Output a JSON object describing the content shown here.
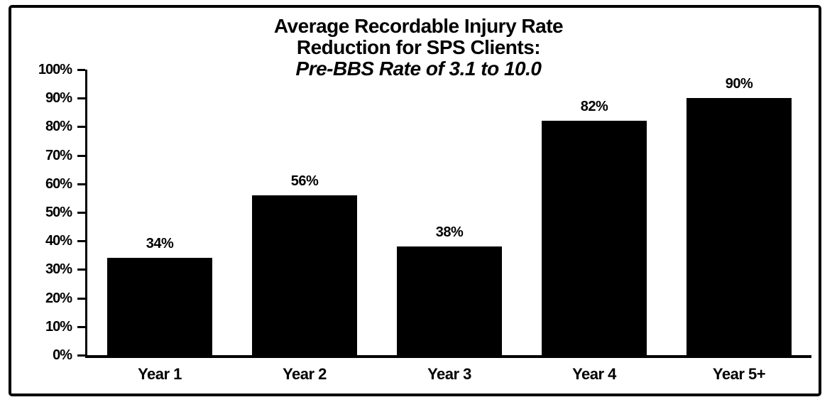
{
  "page": {
    "background_color": "#ffffff",
    "ink_color": "#000000"
  },
  "chart_data": {
    "type": "bar",
    "title_lines": [
      "Average Recordable Injury Rate",
      "Reduction for SPS Clients:",
      "Pre-BBS Rate of 3.1 to 10.0"
    ],
    "categories": [
      "Year 1",
      "Year 2",
      "Year 3",
      "Year 4",
      "Year 5+"
    ],
    "values": [
      34,
      56,
      38,
      82,
      90
    ],
    "value_labels": [
      "34%",
      "56%",
      "38%",
      "82%",
      "90%"
    ],
    "ytick_values": [
      0,
      10,
      20,
      30,
      40,
      50,
      60,
      70,
      80,
      90,
      100
    ],
    "ytick_labels": [
      "0%",
      "10%",
      "20%",
      "30%",
      "40%",
      "50%",
      "60%",
      "70%",
      "80%",
      "90%",
      "100%"
    ],
    "ylim": [
      0,
      100
    ],
    "xlabel": "",
    "ylabel": "",
    "bar_color": "#000000",
    "grid": false,
    "legend": null
  }
}
